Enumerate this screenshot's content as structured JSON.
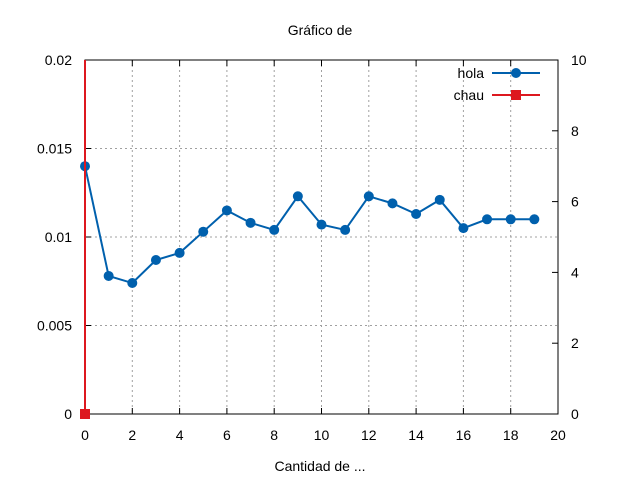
{
  "chart_data": {
    "type": "line",
    "title": "Gráfico de",
    "xlabel": "Cantidad de ...",
    "ylabel": "",
    "y2label": "",
    "xlim": [
      0,
      20
    ],
    "ylim": [
      0,
      0.02
    ],
    "y2lim": [
      0,
      10
    ],
    "x_ticks": [
      "0",
      "2",
      "4",
      "6",
      "8",
      "10",
      "12",
      "14",
      "16",
      "18",
      "20"
    ],
    "y_ticks": [
      "0",
      "0.005",
      "0.01",
      "0.015",
      "0.02"
    ],
    "y2_ticks": [
      "0",
      "2",
      "4",
      "6",
      "8",
      "10"
    ],
    "grid": true,
    "legend_position": "top-right",
    "series": [
      {
        "name": "hola",
        "axis": "y",
        "color": "#0060ad",
        "marker": "circle",
        "x": [
          0,
          1,
          2,
          3,
          4,
          5,
          6,
          7,
          8,
          9,
          10,
          11,
          12,
          13,
          14,
          15,
          16,
          17,
          18,
          19
        ],
        "y": [
          0.014,
          0.0078,
          0.0074,
          0.0087,
          0.0091,
          0.0103,
          0.0115,
          0.0108,
          0.0104,
          0.0123,
          0.0107,
          0.0104,
          0.0123,
          0.0119,
          0.0113,
          0.0121,
          0.0105,
          0.011,
          0.011,
          0.011
        ]
      },
      {
        "name": "chau",
        "axis": "y2",
        "color": "#dd181f",
        "marker": "square",
        "x": [
          0,
          0
        ],
        "y": [
          0,
          10
        ]
      }
    ]
  }
}
